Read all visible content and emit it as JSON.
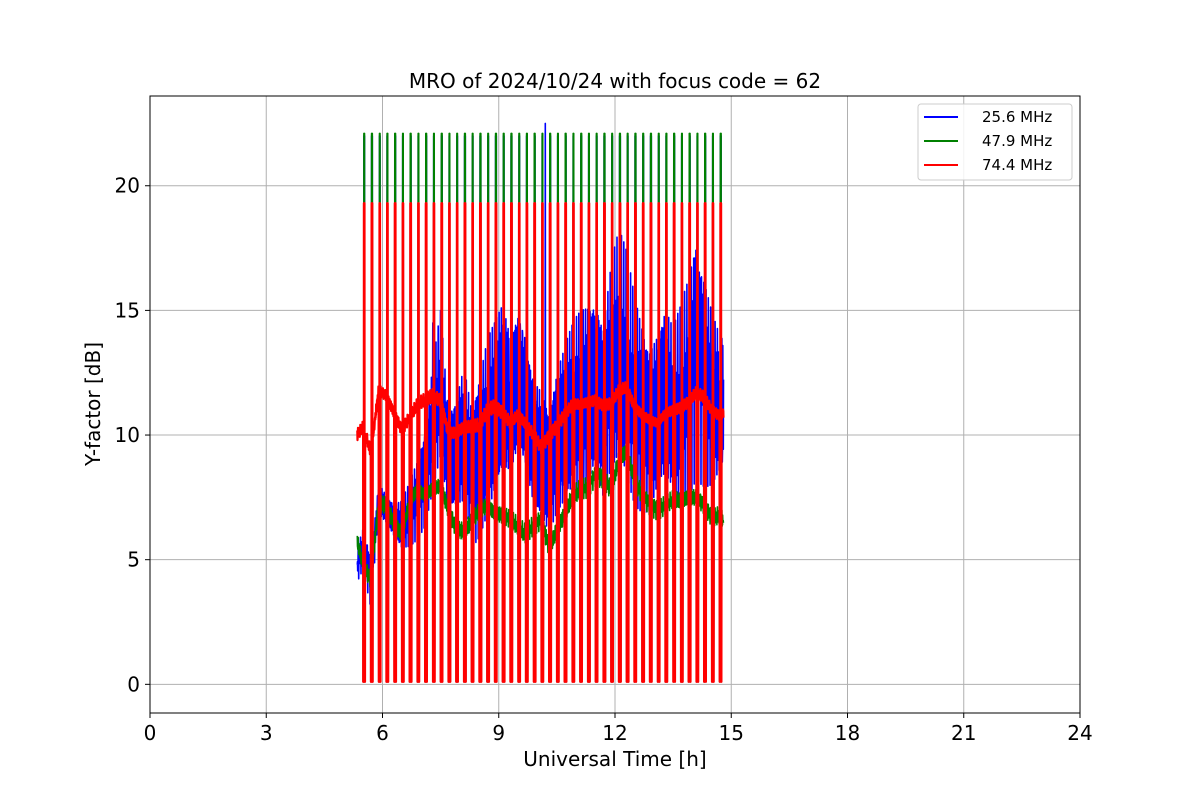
{
  "chart_data": {
    "type": "line",
    "title": "MRO of 2024/10/24 with focus code = 62",
    "xlabel": "Universal Time [h]",
    "ylabel": "Y-factor [dB]",
    "xlim": [
      0,
      24
    ],
    "ylim": [
      -1.15,
      23.6
    ],
    "xticks": [
      0,
      3,
      6,
      9,
      12,
      15,
      18,
      21,
      24
    ],
    "yticks": [
      0,
      5,
      10,
      15,
      20
    ],
    "grid": true,
    "legend_position": "upper right",
    "calibration": {
      "start_h": 5.35,
      "end_h": 14.8,
      "period_h": 0.2,
      "spike_width_h": 0.05,
      "low_level_db": 0.1
    },
    "series": [
      {
        "name": "25.6 MHz",
        "color": "#0000ff",
        "plateau_db": 22.0,
        "x": [
          5.35,
          5.5,
          5.7,
          5.9,
          6.1,
          6.3,
          6.5,
          6.7,
          6.9,
          7.1,
          7.3,
          7.5,
          7.7,
          7.9,
          8.1,
          8.3,
          8.5,
          8.7,
          8.9,
          9.1,
          9.3,
          9.5,
          9.7,
          9.9,
          10.1,
          10.3,
          10.5,
          10.7,
          10.9,
          11.1,
          11.3,
          11.5,
          11.7,
          11.9,
          12.1,
          12.3,
          12.5,
          12.7,
          12.9,
          13.1,
          13.3,
          13.5,
          13.7,
          13.9,
          14.1,
          14.3,
          14.5,
          14.7,
          14.8
        ],
        "y": [
          4.8,
          5.5,
          4.2,
          7.5,
          7.0,
          6.5,
          6.3,
          6.8,
          7.5,
          8.5,
          10.5,
          12.0,
          8.5,
          9.0,
          10.0,
          8.5,
          9.5,
          10.5,
          11.0,
          11.5,
          10.8,
          12.0,
          11.5,
          10.0,
          9.5,
          8.5,
          9.5,
          10.0,
          10.8,
          11.5,
          12.0,
          12.5,
          11.0,
          12.5,
          13.0,
          12.5,
          11.5,
          11.0,
          10.5,
          11.0,
          11.5,
          10.5,
          11.0,
          12.0,
          13.5,
          12.5,
          11.5,
          11.0,
          11.0
        ],
        "amplitude_db": [
          0.5,
          0.6,
          0.8,
          0.5,
          0.5,
          0.6,
          0.8,
          1.0,
          1.2,
          1.5,
          2.0,
          2.5,
          2.0,
          2.2,
          2.5,
          2.5,
          2.8,
          3.0,
          3.0,
          3.2,
          3.0,
          3.0,
          3.0,
          2.8,
          2.5,
          2.2,
          2.5,
          2.8,
          3.0,
          3.2,
          3.5,
          3.5,
          3.2,
          3.5,
          3.8,
          3.5,
          3.2,
          3.0,
          2.8,
          2.8,
          3.0,
          2.8,
          3.0,
          3.2,
          3.5,
          3.2,
          2.8,
          2.5,
          2.5
        ],
        "peaks": [
          {
            "x": 10.2,
            "y": 22.5
          },
          {
            "x": 7.3,
            "y": 14.5
          },
          {
            "x": 11.75,
            "y": 16.9
          },
          {
            "x": 14.05,
            "y": 17.1
          }
        ]
      },
      {
        "name": "47.9 MHz",
        "color": "#008000",
        "plateau_db": 22.1,
        "x": [
          5.35,
          5.5,
          5.7,
          5.9,
          6.1,
          6.3,
          6.5,
          6.7,
          6.9,
          7.1,
          7.3,
          7.5,
          7.7,
          7.9,
          8.1,
          8.3,
          8.5,
          8.7,
          8.9,
          9.1,
          9.3,
          9.5,
          9.7,
          9.9,
          10.1,
          10.3,
          10.5,
          10.7,
          10.9,
          11.1,
          11.3,
          11.5,
          11.7,
          11.9,
          12.1,
          12.3,
          12.5,
          12.7,
          12.9,
          13.1,
          13.3,
          13.5,
          13.7,
          13.9,
          14.1,
          14.3,
          14.5,
          14.7,
          14.8
        ],
        "y": [
          5.7,
          4.8,
          4.2,
          7.3,
          7.2,
          6.4,
          6.0,
          7.3,
          7.8,
          7.6,
          7.9,
          8.0,
          7.0,
          6.2,
          6.1,
          6.5,
          7.0,
          7.2,
          6.9,
          6.8,
          6.6,
          6.3,
          6.0,
          6.4,
          6.6,
          5.5,
          6.2,
          6.8,
          7.5,
          7.8,
          7.9,
          8.4,
          8.3,
          7.8,
          9.0,
          9.3,
          8.2,
          7.6,
          7.2,
          7.0,
          7.2,
          7.4,
          7.3,
          7.5,
          7.5,
          7.2,
          6.7,
          6.8,
          6.5
        ],
        "amplitude_db": [
          0.3,
          0.3,
          0.3,
          0.3,
          0.3,
          0.3,
          0.3,
          0.3,
          0.3,
          0.3,
          0.3,
          0.3,
          0.3,
          0.3,
          0.3,
          0.3,
          0.3,
          0.3,
          0.3,
          0.3,
          0.3,
          0.3,
          0.3,
          0.3,
          0.3,
          0.3,
          0.3,
          0.3,
          0.3,
          0.3,
          0.3,
          0.3,
          0.3,
          0.3,
          0.3,
          0.3,
          0.3,
          0.3,
          0.3,
          0.3,
          0.3,
          0.3,
          0.3,
          0.3,
          0.3,
          0.3,
          0.3,
          0.3,
          0.3
        ]
      },
      {
        "name": "74.4 MHz",
        "color": "#ff0000",
        "plateau_db": 19.3,
        "x": [
          5.35,
          5.5,
          5.7,
          5.9,
          6.1,
          6.3,
          6.5,
          6.7,
          6.9,
          7.1,
          7.3,
          7.5,
          7.7,
          7.9,
          8.1,
          8.3,
          8.5,
          8.7,
          8.9,
          9.1,
          9.3,
          9.5,
          9.7,
          9.9,
          10.1,
          10.3,
          10.5,
          10.7,
          10.9,
          11.1,
          11.3,
          11.5,
          11.7,
          11.9,
          12.1,
          12.3,
          12.5,
          12.7,
          12.9,
          13.1,
          13.3,
          13.5,
          13.7,
          13.9,
          14.1,
          14.3,
          14.5,
          14.7,
          14.8
        ],
        "y": [
          10.0,
          10.3,
          9.3,
          11.8,
          11.6,
          10.9,
          10.2,
          10.7,
          11.2,
          11.4,
          11.6,
          11.4,
          10.1,
          10.1,
          10.3,
          10.3,
          10.4,
          11.0,
          11.2,
          10.9,
          10.5,
          10.8,
          10.4,
          10.0,
          9.5,
          10.0,
          10.4,
          10.8,
          11.2,
          11.2,
          11.3,
          11.4,
          11.2,
          11.3,
          11.8,
          11.9,
          11.1,
          10.8,
          10.6,
          10.5,
          10.9,
          11.0,
          11.1,
          11.3,
          11.7,
          11.5,
          11.0,
          10.8,
          10.9
        ],
        "amplitude_db": [
          0.2,
          0.2,
          0.2,
          0.2,
          0.2,
          0.2,
          0.2,
          0.2,
          0.2,
          0.2,
          0.2,
          0.2,
          0.2,
          0.2,
          0.2,
          0.2,
          0.2,
          0.2,
          0.2,
          0.2,
          0.2,
          0.2,
          0.2,
          0.2,
          0.2,
          0.2,
          0.2,
          0.2,
          0.2,
          0.2,
          0.2,
          0.2,
          0.2,
          0.2,
          0.2,
          0.2,
          0.2,
          0.2,
          0.2,
          0.2,
          0.2,
          0.2,
          0.2,
          0.2,
          0.2,
          0.2,
          0.2,
          0.2,
          0.2
        ]
      }
    ]
  }
}
